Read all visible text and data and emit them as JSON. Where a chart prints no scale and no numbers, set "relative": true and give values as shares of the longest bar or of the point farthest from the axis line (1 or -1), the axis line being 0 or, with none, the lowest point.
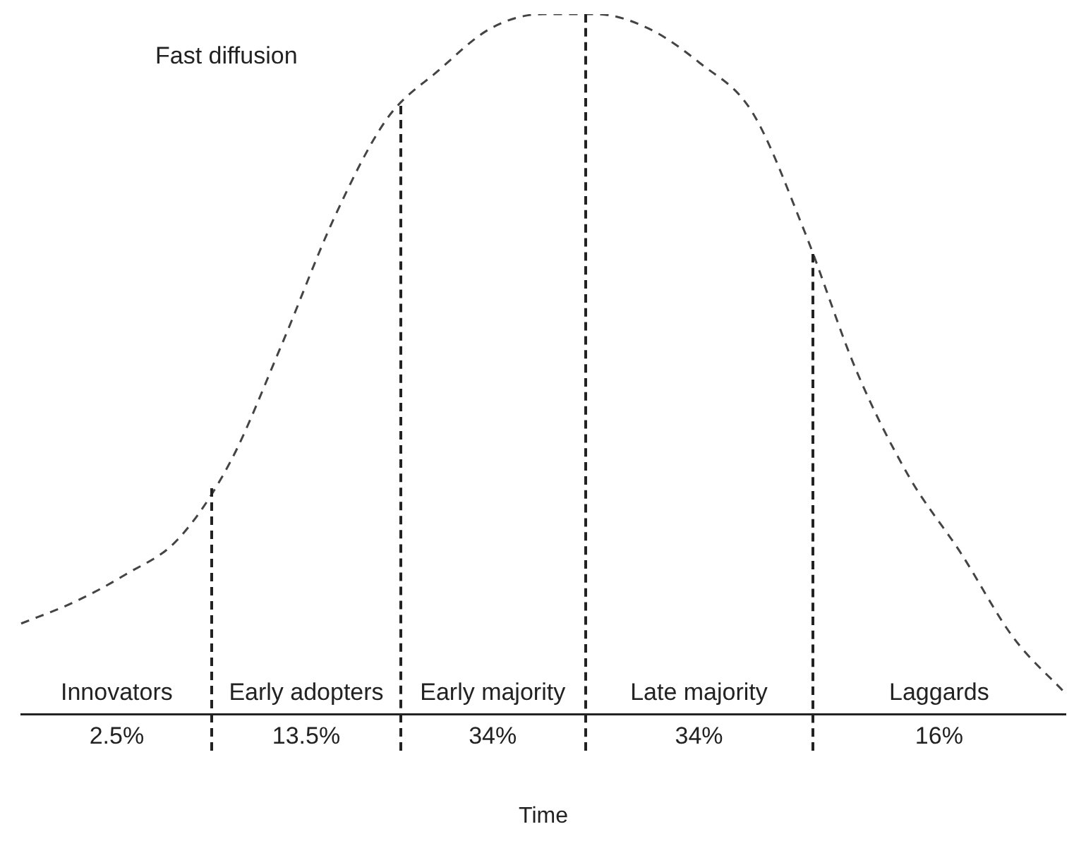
{
  "chart_data": {
    "type": "line",
    "relative": true,
    "xlabel": "Time",
    "categories": [
      null,
      null,
      null,
      null,
      null,
      null,
      null,
      null,
      null,
      null,
      null,
      null,
      null,
      null,
      null,
      null,
      null,
      null,
      null,
      null,
      null
    ],
    "series": [
      {
        "color": "#444444",
        "values": [
          0.13,
          0.16,
          0.2,
          0.25,
          0.36,
          0.53,
          0.71,
          0.85,
          0.92,
          0.98,
          1.0,
          1.0,
          0.98,
          0.93,
          0.86,
          0.69,
          0.49,
          0.34,
          0.23,
          0.11,
          0.03
        ]
      }
    ],
    "marker": "none",
    "line_style": "dashed",
    "grid": false,
    "legend": false,
    "annotations": [
      "Fast diffusion",
      "Innovators",
      "Early adopters",
      "Early majority",
      "Late majority",
      "Laggards",
      "2.5%",
      "13.5%",
      "34%",
      "34%",
      "16%"
    ]
  }
}
